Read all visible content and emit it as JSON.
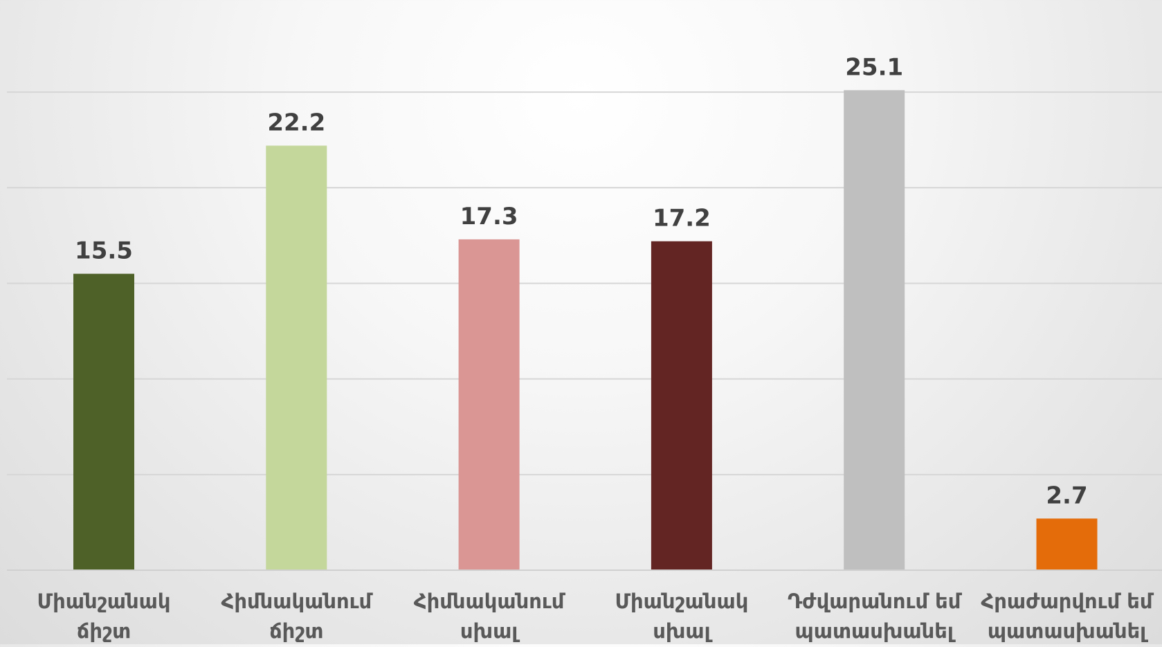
{
  "chart_data": {
    "type": "bar",
    "categories": [
      [
        "Միանշանակ",
        "ճիշտ"
      ],
      [
        "Հիմնականում",
        "ճիշտ"
      ],
      [
        "Հիմնականում",
        "սխալ"
      ],
      [
        "Միանշանակ",
        "սխալ"
      ],
      [
        "Դժվարանում եմ",
        "պատասխանել"
      ],
      [
        "Հրաժարվում եմ",
        "պատասխանել"
      ]
    ],
    "values": [
      15.5,
      22.2,
      17.3,
      17.2,
      25.1,
      2.7
    ],
    "value_labels": [
      "15.5",
      "22.2",
      "17.3",
      "17.2",
      "25.1",
      "2.7"
    ],
    "colors": [
      "#4e6128",
      "#c4d79b",
      "#da9694",
      "#632523",
      "#bfbfbf",
      "#e46c0a"
    ],
    "ylim": [
      0,
      27.5
    ],
    "gridlines": [
      5,
      10,
      15,
      20,
      25
    ],
    "grid": true,
    "legend": "none",
    "title": "",
    "xlabel": "",
    "ylabel": ""
  }
}
